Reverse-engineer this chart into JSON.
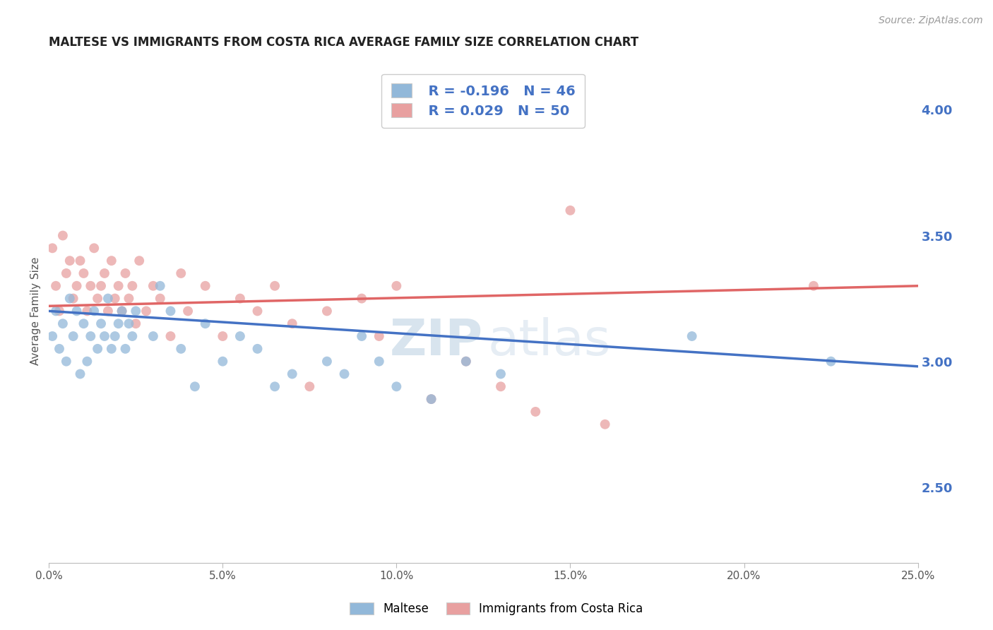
{
  "title": "MALTESE VS IMMIGRANTS FROM COSTA RICA AVERAGE FAMILY SIZE CORRELATION CHART",
  "source_text": "Source: ZipAtlas.com",
  "ylabel": "Average Family Size",
  "xlim": [
    0.0,
    0.25
  ],
  "ylim": [
    2.2,
    4.2
  ],
  "right_yticks": [
    2.5,
    3.0,
    3.5,
    4.0
  ],
  "xtick_labels": [
    "0.0%",
    "5.0%",
    "10.0%",
    "15.0%",
    "20.0%",
    "25.0%"
  ],
  "xtick_values": [
    0.0,
    0.05,
    0.1,
    0.15,
    0.2,
    0.25
  ],
  "blue_color": "#92b8d9",
  "pink_color": "#e8a0a0",
  "blue_line_color": "#4472c4",
  "pink_line_color": "#e06666",
  "grid_color": "#c8d8e8",
  "right_axis_color": "#4472c4",
  "legend_R_blue": "R = -0.196",
  "legend_N_blue": "N = 46",
  "legend_R_pink": "R = 0.029",
  "legend_N_pink": "N = 50",
  "watermark_zip": "ZIP",
  "watermark_atlas": "atlas",
  "title_fontsize": 12,
  "label_fontsize": 11,
  "tick_fontsize": 11,
  "source_fontsize": 10,
  "background_color": "#ffffff",
  "blue_scatter_x": [
    0.001,
    0.002,
    0.003,
    0.004,
    0.005,
    0.006,
    0.007,
    0.008,
    0.009,
    0.01,
    0.011,
    0.012,
    0.013,
    0.014,
    0.015,
    0.016,
    0.017,
    0.018,
    0.019,
    0.02,
    0.021,
    0.022,
    0.023,
    0.024,
    0.025,
    0.03,
    0.032,
    0.035,
    0.038,
    0.042,
    0.045,
    0.05,
    0.055,
    0.06,
    0.065,
    0.07,
    0.08,
    0.085,
    0.09,
    0.095,
    0.1,
    0.11,
    0.12,
    0.13,
    0.185,
    0.225
  ],
  "blue_scatter_y": [
    3.1,
    3.2,
    3.05,
    3.15,
    3.0,
    3.25,
    3.1,
    3.2,
    2.95,
    3.15,
    3.0,
    3.1,
    3.2,
    3.05,
    3.15,
    3.1,
    3.25,
    3.05,
    3.1,
    3.15,
    3.2,
    3.05,
    3.15,
    3.1,
    3.2,
    3.1,
    3.3,
    3.2,
    3.05,
    2.9,
    3.15,
    3.0,
    3.1,
    3.05,
    2.9,
    2.95,
    3.0,
    2.95,
    3.1,
    3.0,
    2.9,
    2.85,
    3.0,
    2.95,
    3.1,
    3.0
  ],
  "pink_scatter_x": [
    0.001,
    0.002,
    0.003,
    0.004,
    0.005,
    0.006,
    0.007,
    0.008,
    0.009,
    0.01,
    0.011,
    0.012,
    0.013,
    0.014,
    0.015,
    0.016,
    0.017,
    0.018,
    0.019,
    0.02,
    0.021,
    0.022,
    0.023,
    0.024,
    0.025,
    0.026,
    0.028,
    0.03,
    0.032,
    0.035,
    0.038,
    0.04,
    0.045,
    0.05,
    0.055,
    0.06,
    0.065,
    0.07,
    0.075,
    0.08,
    0.09,
    0.095,
    0.1,
    0.11,
    0.12,
    0.13,
    0.14,
    0.15,
    0.16,
    0.22
  ],
  "pink_scatter_y": [
    3.45,
    3.3,
    3.2,
    3.5,
    3.35,
    3.4,
    3.25,
    3.3,
    3.4,
    3.35,
    3.2,
    3.3,
    3.45,
    3.25,
    3.3,
    3.35,
    3.2,
    3.4,
    3.25,
    3.3,
    3.2,
    3.35,
    3.25,
    3.3,
    3.15,
    3.4,
    3.2,
    3.3,
    3.25,
    3.1,
    3.35,
    3.2,
    3.3,
    3.1,
    3.25,
    3.2,
    3.3,
    3.15,
    2.9,
    3.2,
    3.25,
    3.1,
    3.3,
    2.85,
    3.0,
    2.9,
    2.8,
    3.6,
    2.75,
    3.3
  ],
  "blue_trend_x": [
    0.0,
    0.25
  ],
  "blue_trend_y": [
    3.2,
    2.98
  ],
  "pink_trend_x": [
    0.0,
    0.25
  ],
  "pink_trend_y": [
    3.22,
    3.3
  ]
}
